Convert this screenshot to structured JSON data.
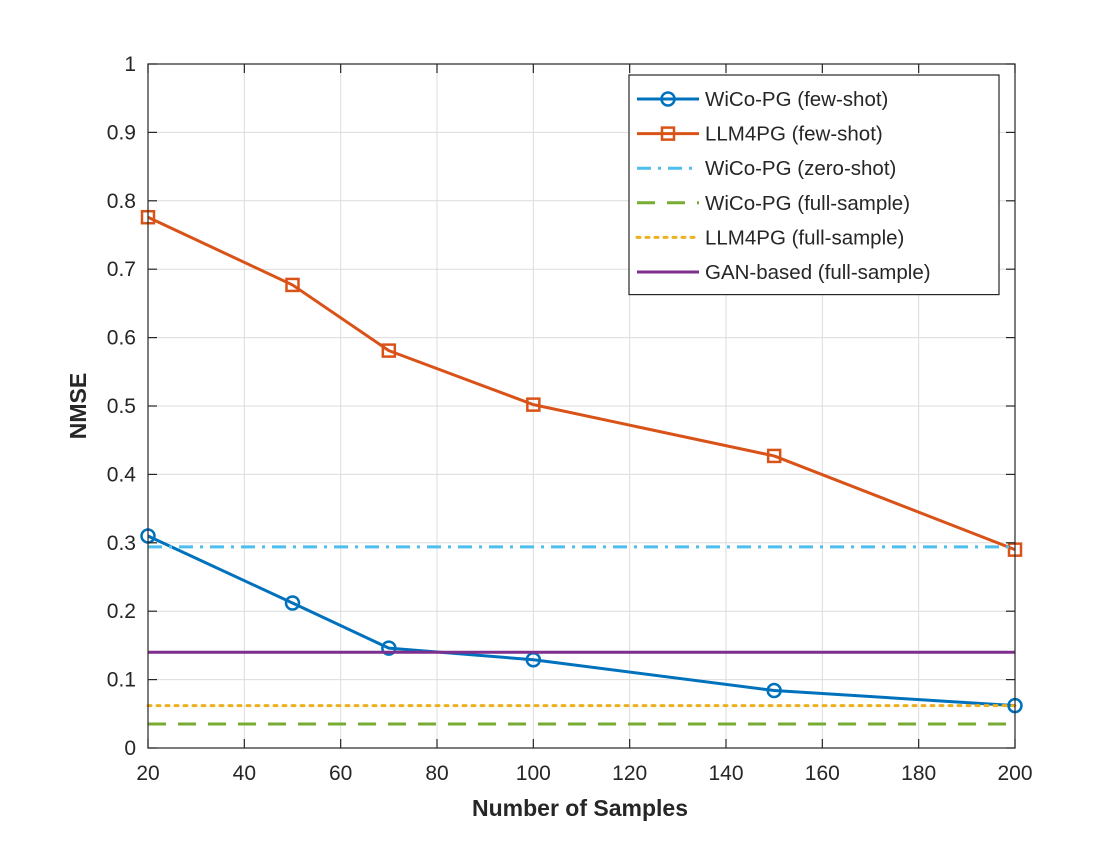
{
  "chart_data": {
    "type": "line",
    "title": "",
    "xlabel": "Number of Samples",
    "ylabel": "NMSE",
    "xlim": [
      20,
      200
    ],
    "ylim": [
      0,
      1
    ],
    "grid": true,
    "legend_position": "top-right",
    "xticks": [
      20,
      40,
      60,
      80,
      100,
      120,
      140,
      160,
      180,
      200
    ],
    "xtick_labels": [
      "20",
      "40",
      "60",
      "80",
      "100",
      "120",
      "140",
      "160",
      "180",
      "200"
    ],
    "yticks": [
      0,
      0.1,
      0.2,
      0.3,
      0.4,
      0.5,
      0.6,
      0.7,
      0.8,
      0.9,
      1
    ],
    "ytick_labels": [
      "0",
      "0.1",
      "0.2",
      "0.3",
      "0.4",
      "0.5",
      "0.6",
      "0.7",
      "0.8",
      "0.9",
      "1"
    ],
    "series": [
      {
        "name": "WiCo-PG (few-shot)",
        "color": "#0072BD",
        "line_style": "solid",
        "marker": "circle",
        "x": [
          20,
          50,
          70,
          100,
          150,
          200
        ],
        "y": [
          0.31,
          0.212,
          0.146,
          0.129,
          0.084,
          0.062
        ]
      },
      {
        "name": "LLM4PG (few-shot)",
        "color": "#D95319",
        "line_style": "solid",
        "marker": "square",
        "x": [
          20,
          50,
          70,
          100,
          150,
          200
        ],
        "y": [
          0.776,
          0.677,
          0.581,
          0.502,
          0.427,
          0.29
        ]
      },
      {
        "name": "WiCo-PG (zero-shot)",
        "color": "#4DBEEE",
        "line_style": "dashdot",
        "marker": "none",
        "x": [
          20,
          200
        ],
        "y": [
          0.294,
          0.294
        ]
      },
      {
        "name": "WiCo-PG (full-sample)",
        "color": "#77AC30",
        "line_style": "dashed",
        "marker": "none",
        "x": [
          20,
          200
        ],
        "y": [
          0.035,
          0.035
        ]
      },
      {
        "name": "LLM4PG (full-sample)",
        "color": "#EDB120",
        "line_style": "dotted",
        "marker": "none",
        "x": [
          20,
          200
        ],
        "y": [
          0.062,
          0.062
        ]
      },
      {
        "name": "GAN-based (full-sample)",
        "color": "#7E2F8E",
        "line_style": "solid",
        "marker": "none",
        "x": [
          20,
          200
        ],
        "y": [
          0.14,
          0.14
        ]
      }
    ]
  }
}
